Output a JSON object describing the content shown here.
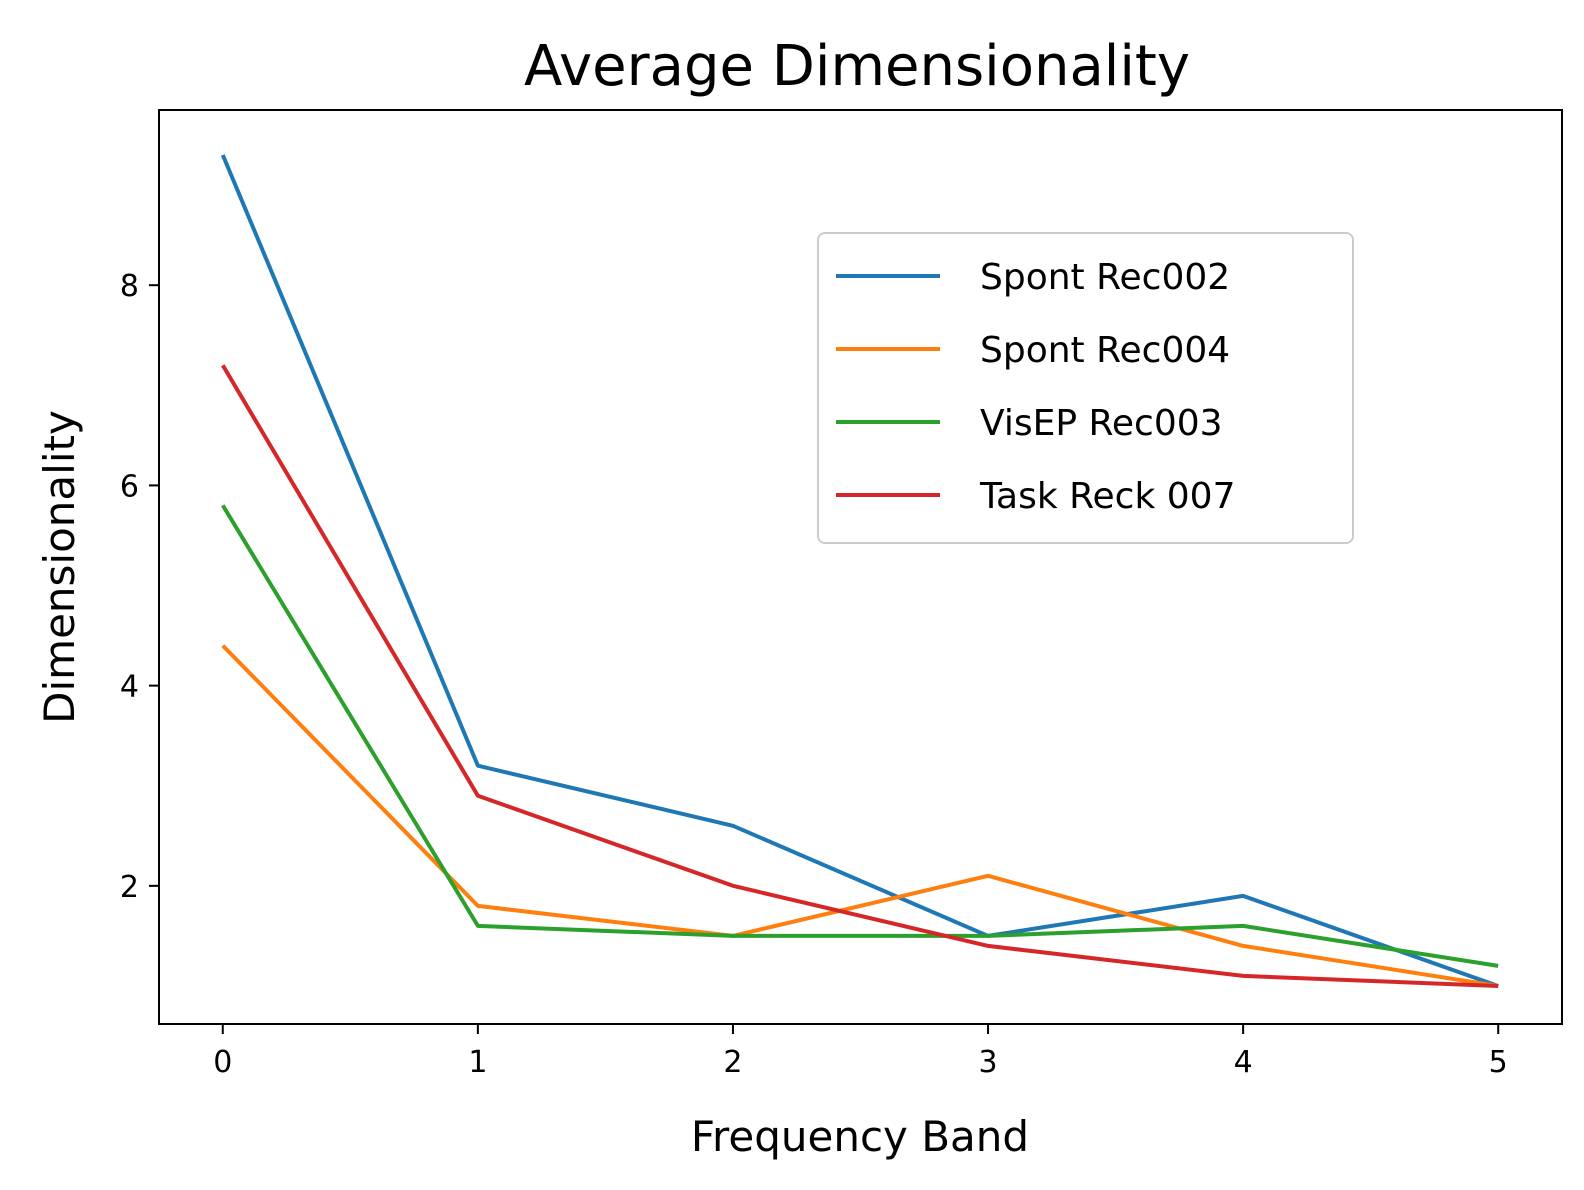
{
  "chart_data": {
    "type": "line",
    "title": "Average Dimensionality",
    "xlabel": "Frequency Band",
    "ylabel": "Dimensionality",
    "x": [
      0,
      1,
      2,
      3,
      4,
      5
    ],
    "xticks": [
      0,
      1,
      2,
      3,
      4,
      5
    ],
    "yticks": [
      2,
      4,
      6,
      8
    ],
    "xlim": [
      -0.25,
      5.25
    ],
    "ylim": [
      0.62,
      9.75
    ],
    "grid": false,
    "legend_position": "upper-right",
    "series": [
      {
        "name": "Spont Rec002",
        "color": "#1f77b4",
        "values": [
          9.3,
          3.2,
          2.6,
          1.5,
          1.9,
          1.0
        ]
      },
      {
        "name": "Spont Rec004",
        "color": "#ff7f0e",
        "values": [
          4.4,
          1.8,
          1.5,
          2.1,
          1.4,
          1.0
        ]
      },
      {
        "name": "VisEP Rec003",
        "color": "#2ca02c",
        "values": [
          5.8,
          1.6,
          1.5,
          1.5,
          1.6,
          1.2
        ]
      },
      {
        "name": "Task Reck 007",
        "color": "#d62728",
        "values": [
          7.2,
          2.9,
          2.0,
          1.4,
          1.1,
          1.0
        ]
      }
    ]
  }
}
